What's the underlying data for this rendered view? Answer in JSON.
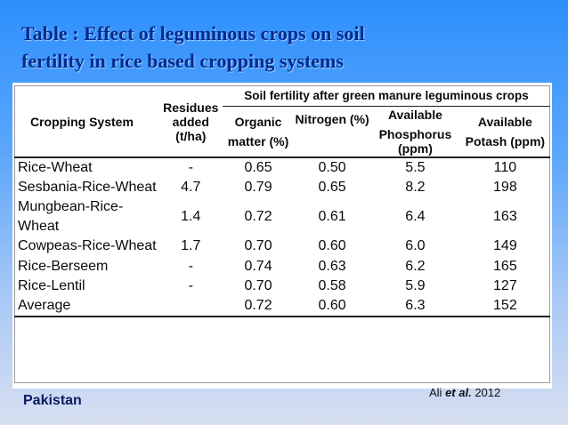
{
  "slide": {
    "title_line1": "Table : Effect of leguminous crops on soil",
    "title_line2": "fertility in rice based cropping systems",
    "country": "Pakistan",
    "citation_author": "Ali",
    "citation_etal": "et al.",
    "citation_year": "2012"
  },
  "table": {
    "header_group": "Soil fertility after green manure leguminous crops",
    "col_cropping_system": "Cropping System",
    "col_residues_1": "Residues",
    "col_residues_2": "added (t/ha)",
    "col_om_1": "Organic",
    "col_om_2": "matter (%)",
    "col_n": "Nitrogen (%)",
    "col_p_1": "Available",
    "col_p_2": "Phosphorus (ppm)",
    "col_k_1": "Available",
    "col_k_2": "Potash (ppm)",
    "rows": [
      {
        "system": "Rice-Wheat",
        "residues": "-",
        "om": "0.65",
        "n": "0.50",
        "p": "5.5",
        "k": "110"
      },
      {
        "system": "Sesbania-Rice-Wheat",
        "residues": "4.7",
        "om": "0.79",
        "n": "0.65",
        "p": "8.2",
        "k": "198"
      },
      {
        "system": "Mungbean-Rice-Wheat",
        "residues": "1.4",
        "om": "0.72",
        "n": "0.61",
        "p": "6.4",
        "k": "163"
      },
      {
        "system": "Cowpeas-Rice-Wheat",
        "residues": "1.7",
        "om": "0.70",
        "n": "0.60",
        "p": "6.0",
        "k": "149"
      },
      {
        "system": "Rice-Berseem",
        "residues": "-",
        "om": "0.74",
        "n": "0.63",
        "p": "6.2",
        "k": "165"
      },
      {
        "system": "Rice-Lentil",
        "residues": "-",
        "om": "0.70",
        "n": "0.58",
        "p": "5.9",
        "k": "127"
      },
      {
        "system": "Average",
        "residues": "",
        "om": "0.72",
        "n": "0.60",
        "p": "6.3",
        "k": "152"
      }
    ]
  }
}
